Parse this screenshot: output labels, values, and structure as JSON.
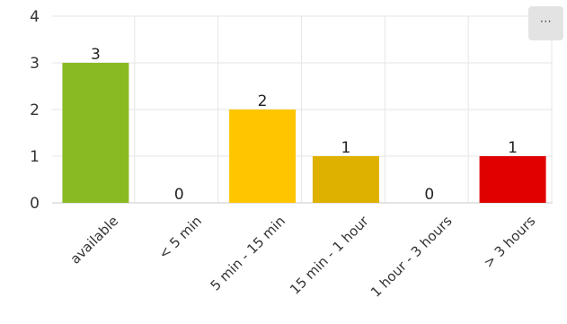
{
  "menu": {
    "label": "···",
    "icon": "more-icon"
  },
  "chart_data": {
    "type": "bar",
    "title": "",
    "xlabel": "",
    "ylabel": "",
    "categories": [
      "available",
      "< 5 min",
      "5 min - 15 min",
      "15 min - 1 hour",
      "1 hour - 3 hours",
      "> 3 hours"
    ],
    "values": [
      3,
      0,
      2,
      1,
      0,
      1
    ],
    "colors": [
      "#8aba22",
      "#8aba22",
      "#ffc600",
      "#deb000",
      "#deb000",
      "#e00000"
    ],
    "ylim": [
      0,
      4
    ],
    "yticks": [
      0,
      1,
      2,
      3,
      4
    ],
    "grid": true,
    "data_labels": true,
    "legend": "none"
  }
}
